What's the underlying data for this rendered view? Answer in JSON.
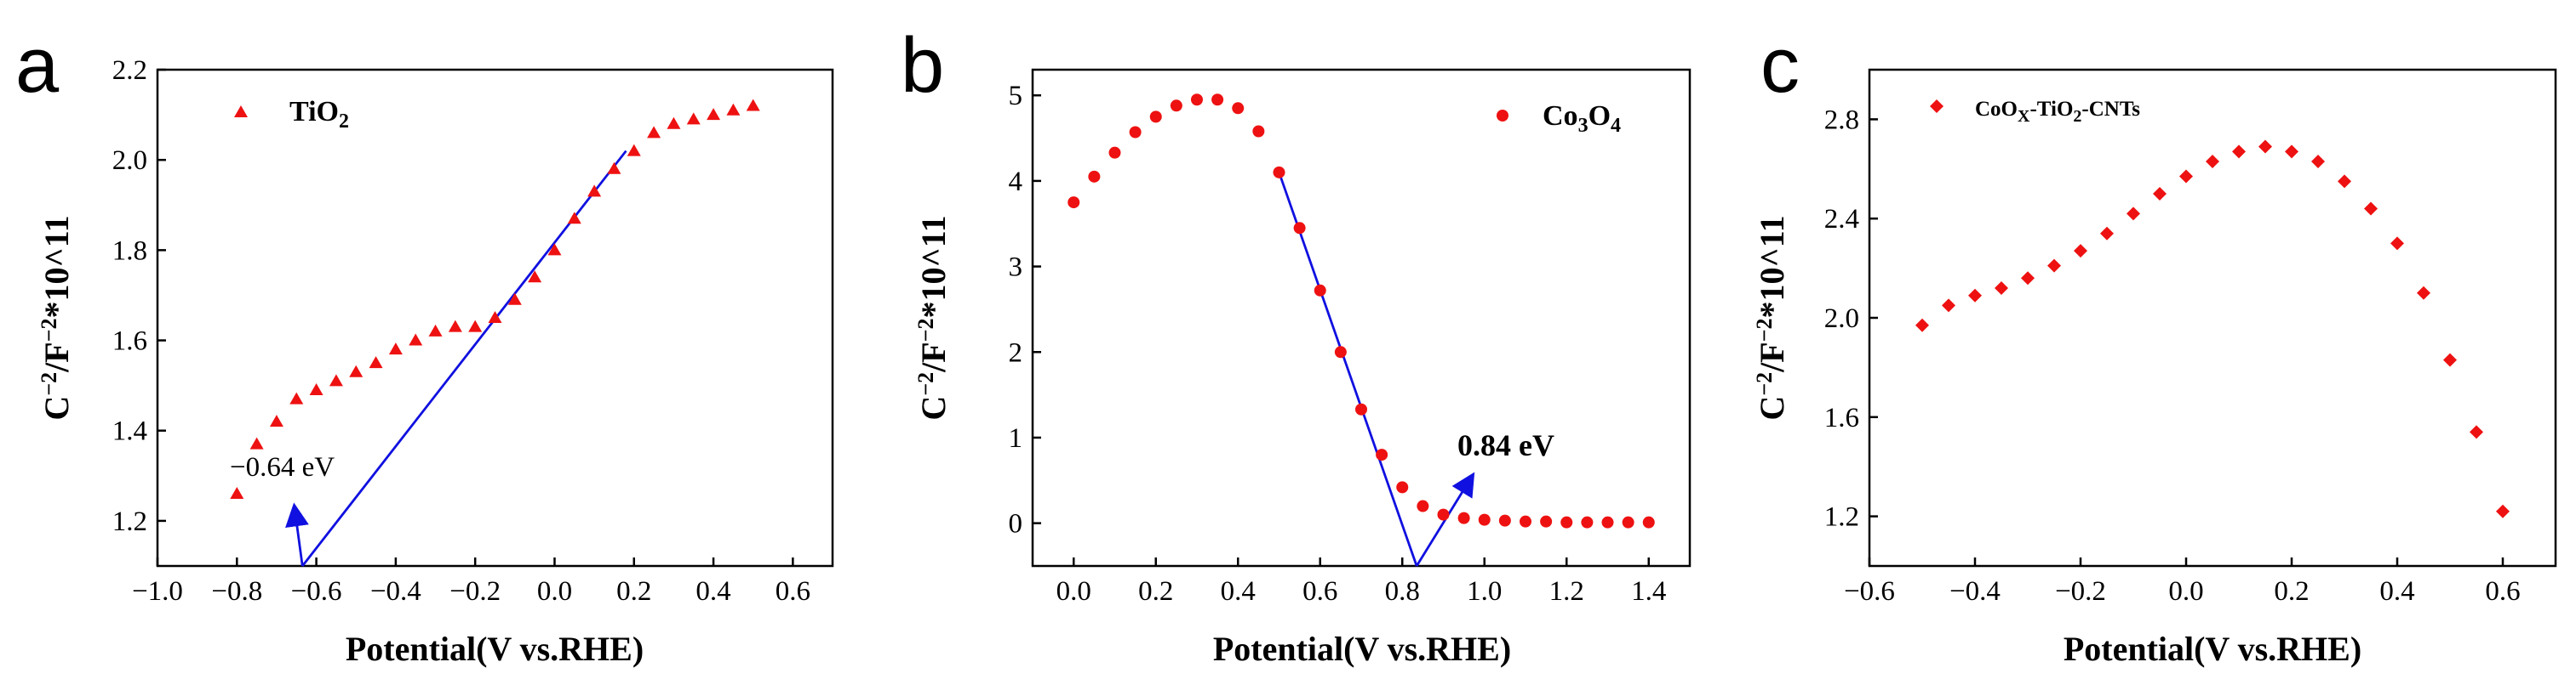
{
  "colors": {
    "marker": "#ee1111",
    "fit": "#1010e0",
    "axis": "#000000"
  },
  "chart_data": [
    {
      "type": "scatter",
      "panel_label": "a",
      "title": "",
      "xlabel": "Potential(V vs.RHE)",
      "ylabel_main": "C",
      "ylabel_exp1": "−2",
      "ylabel_mid": "/F",
      "ylabel_exp2": "−2",
      "ylabel_tail": "*10^11",
      "xlim": [
        -1.0,
        0.7
      ],
      "ylim": [
        1.1,
        2.2
      ],
      "xticks": [
        -1.0,
        -0.8,
        -0.6,
        -0.4,
        -0.2,
        0.0,
        0.2,
        0.4,
        0.6
      ],
      "xtick_labels": [
        "−1.0",
        "−0.8",
        "−0.6",
        "−0.4",
        "−0.2",
        "0.0",
        "0.2",
        "0.4",
        "0.6"
      ],
      "yticks": [
        1.2,
        1.4,
        1.6,
        1.8,
        2.0,
        2.2
      ],
      "ytick_labels": [
        "1.2",
        "1.4",
        "1.6",
        "1.8",
        "2.0",
        "2.2"
      ],
      "marker": "triangle",
      "legend": {
        "label_main": "TiO",
        "label_sub": "2",
        "position": "top-left"
      },
      "series": [
        {
          "name": "TiO2",
          "x": [
            -0.8,
            -0.75,
            -0.7,
            -0.65,
            -0.6,
            -0.55,
            -0.5,
            -0.45,
            -0.4,
            -0.35,
            -0.3,
            -0.25,
            -0.2,
            -0.15,
            -0.1,
            -0.05,
            0.0,
            0.05,
            0.1,
            0.15,
            0.2,
            0.25,
            0.3,
            0.35,
            0.4,
            0.45,
            0.5
          ],
          "y": [
            1.26,
            1.37,
            1.42,
            1.47,
            1.49,
            1.51,
            1.53,
            1.55,
            1.58,
            1.6,
            1.62,
            1.63,
            1.63,
            1.65,
            1.69,
            1.74,
            1.8,
            1.87,
            1.93,
            1.98,
            2.02,
            2.06,
            2.08,
            2.09,
            2.1,
            2.11,
            2.12
          ]
        }
      ],
      "fit_line": {
        "x": [
          -0.635,
          0.18
        ],
        "y": [
          1.1,
          2.02
        ]
      },
      "arrow": {
        "from": [
          -0.635,
          1.1
        ],
        "to": [
          -0.655,
          1.23
        ]
      },
      "annotation": "−0.64 eV"
    },
    {
      "type": "scatter",
      "panel_label": "b",
      "title": "",
      "xlabel": "Potential(V vs.RHE)",
      "ylabel_main": "C",
      "ylabel_exp1": "−2",
      "ylabel_mid": "/F",
      "ylabel_exp2": "−2",
      "ylabel_tail": "*10^11",
      "xlim": [
        -0.1,
        1.5
      ],
      "ylim": [
        -0.5,
        5.3
      ],
      "xticks": [
        0.0,
        0.2,
        0.4,
        0.6,
        0.8,
        1.0,
        1.2,
        1.4
      ],
      "xtick_labels": [
        "0.0",
        "0.2",
        "0.4",
        "0.6",
        "0.8",
        "1.0",
        "1.2",
        "1.4"
      ],
      "yticks": [
        0,
        1,
        2,
        3,
        4,
        5
      ],
      "ytick_labels": [
        "0",
        "1",
        "2",
        "3",
        "4",
        "5"
      ],
      "marker": "circle",
      "legend": {
        "label_a": "Co",
        "sub_a": "3",
        "label_b": "O",
        "sub_b": "4",
        "position": "top-right"
      },
      "series": [
        {
          "name": "Co3O4",
          "x": [
            0.0,
            0.05,
            0.1,
            0.15,
            0.2,
            0.25,
            0.3,
            0.35,
            0.4,
            0.45,
            0.5,
            0.55,
            0.6,
            0.65,
            0.7,
            0.75,
            0.8,
            0.85,
            0.9,
            0.95,
            1.0,
            1.05,
            1.1,
            1.15,
            1.2,
            1.25,
            1.3,
            1.35,
            1.4
          ],
          "y": [
            3.75,
            4.05,
            4.33,
            4.57,
            4.75,
            4.88,
            4.95,
            4.95,
            4.85,
            4.58,
            4.1,
            3.45,
            2.72,
            2.0,
            1.33,
            0.8,
            0.42,
            0.2,
            0.1,
            0.06,
            0.04,
            0.03,
            0.02,
            0.02,
            0.01,
            0.01,
            0.01,
            0.01,
            0.01
          ]
        }
      ],
      "fit_line": {
        "x": [
          0.5,
          0.835
        ],
        "y": [
          4.1,
          -0.5
        ]
      },
      "arrow": {
        "from": [
          0.835,
          -0.5
        ],
        "to": [
          0.97,
          0.55
        ]
      },
      "annotation": "0.84 eV"
    },
    {
      "type": "scatter",
      "panel_label": "c",
      "title": "",
      "xlabel": "Potential(V vs.RHE)",
      "ylabel_main": "C",
      "ylabel_exp1": "−2",
      "ylabel_mid": "/F",
      "ylabel_exp2": "−2",
      "ylabel_tail": "*10^11",
      "xlim": [
        -0.6,
        0.7
      ],
      "ylim": [
        1.0,
        3.0
      ],
      "xticks": [
        -0.6,
        -0.4,
        -0.2,
        0.0,
        0.2,
        0.4,
        0.6
      ],
      "xtick_labels": [
        "−0.6",
        "−0.4",
        "−0.2",
        "0.0",
        "0.2",
        "0.4",
        "0.6"
      ],
      "yticks": [
        1.2,
        1.6,
        2.0,
        2.4,
        2.8
      ],
      "ytick_labels": [
        "1.2",
        "1.6",
        "2.0",
        "2.4",
        "2.8"
      ],
      "marker": "diamond",
      "legend": {
        "label_a": "CoO",
        "sub_a": "X",
        "label_b": "-TiO",
        "sub_b": "2",
        "label_c": "-CNTs",
        "position": "top-left"
      },
      "series": [
        {
          "name": "CoOX-TiO2-CNTs",
          "x": [
            -0.5,
            -0.45,
            -0.4,
            -0.35,
            -0.3,
            -0.25,
            -0.2,
            -0.15,
            -0.1,
            -0.05,
            0.0,
            0.05,
            0.1,
            0.15,
            0.2,
            0.25,
            0.3,
            0.35,
            0.4,
            0.45,
            0.5,
            0.55,
            0.6
          ],
          "y": [
            1.97,
            2.05,
            2.09,
            2.12,
            2.16,
            2.21,
            2.27,
            2.34,
            2.42,
            2.5,
            2.57,
            2.63,
            2.67,
            2.69,
            2.67,
            2.63,
            2.55,
            2.44,
            2.3,
            2.1,
            1.83,
            1.54,
            1.22
          ]
        }
      ]
    }
  ]
}
